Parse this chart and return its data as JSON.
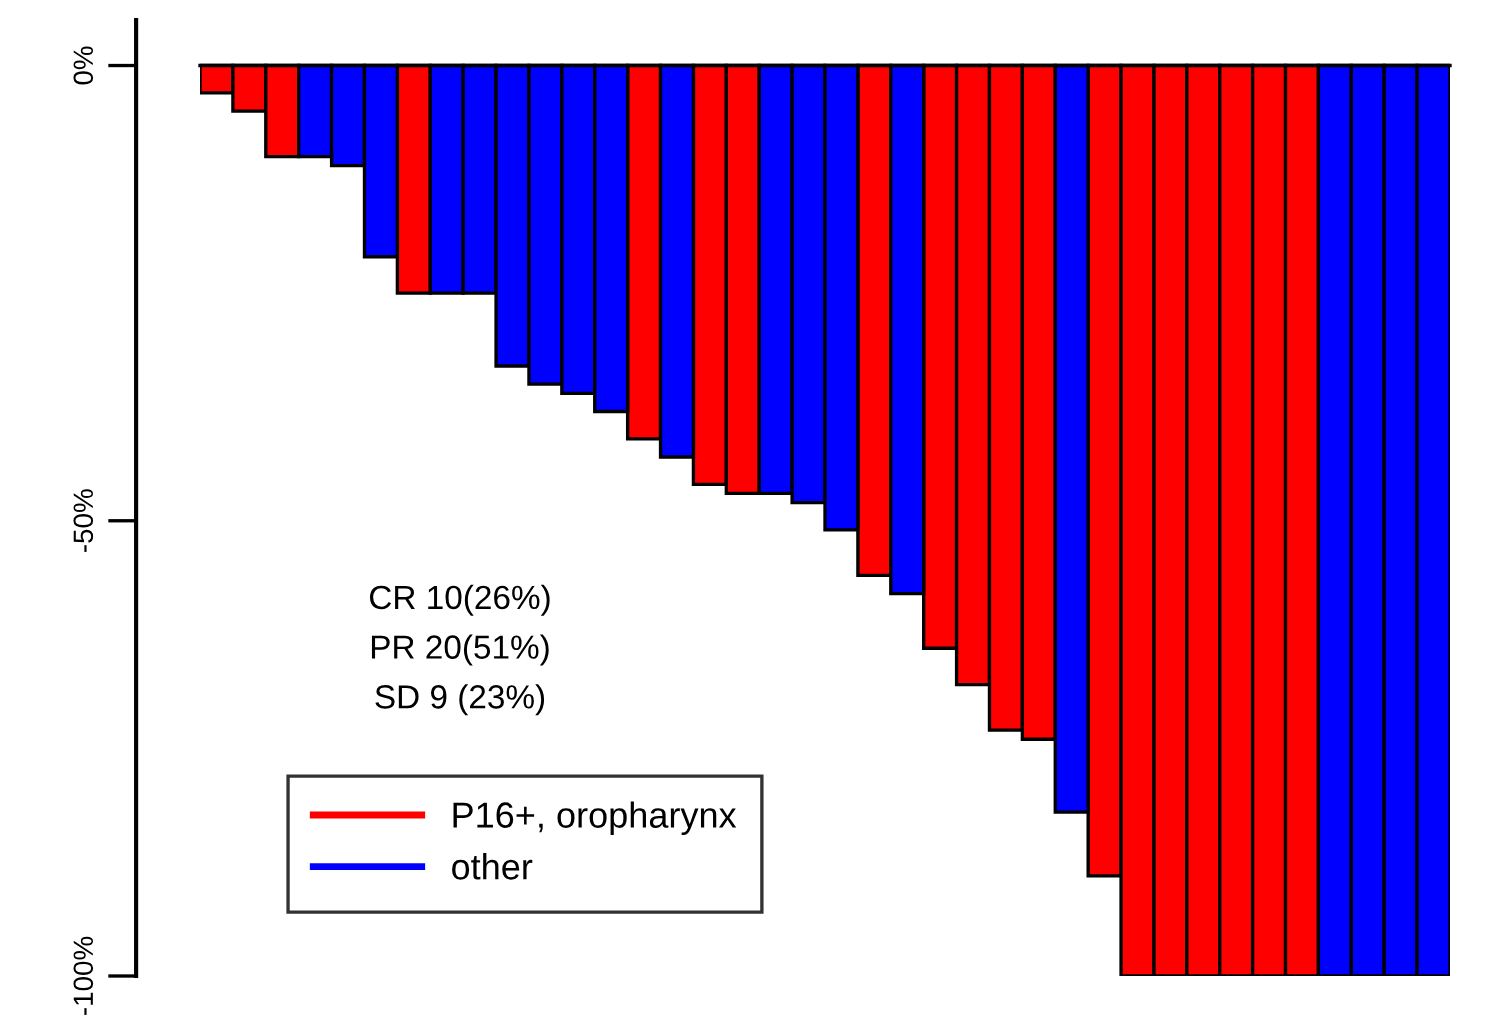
{
  "chart_data": {
    "type": "bar",
    "stacked": true,
    "categories": [
      null,
      null,
      null,
      null,
      null,
      null,
      null,
      null,
      null,
      null,
      null,
      null,
      null,
      null,
      null,
      null,
      null,
      null,
      null,
      null,
      null,
      null,
      null,
      null,
      null,
      null,
      null,
      null,
      null,
      null,
      null,
      null,
      null,
      null,
      null,
      null,
      null,
      null
    ],
    "series": [
      {
        "name": "P16+, oropharynx",
        "color": "#ff0000",
        "values": [
          -3,
          -5,
          -10,
          null,
          null,
          null,
          -25,
          null,
          null,
          null,
          null,
          null,
          null,
          -41,
          null,
          -46,
          -47,
          null,
          null,
          null,
          -56,
          null,
          -64,
          -68,
          -73,
          -74,
          null,
          -89,
          -100,
          -100,
          -100,
          -100,
          -100,
          -100,
          null,
          null,
          null,
          null
        ]
      },
      {
        "name": "other",
        "color": "#0000ff",
        "values": [
          null,
          null,
          null,
          -10,
          -11,
          -21,
          null,
          -25,
          -25,
          -33,
          -35,
          -36,
          -38,
          null,
          -43,
          null,
          null,
          -47,
          -48,
          -51,
          null,
          -58,
          null,
          null,
          null,
          null,
          -82,
          null,
          null,
          null,
          null,
          null,
          null,
          null,
          -100,
          -100,
          -100,
          -100
        ]
      }
    ],
    "ylim": [
      -100,
      5
    ],
    "yticks": [
      {
        "value": 0,
        "label": "0%"
      },
      {
        "value": -50,
        "label": "-50%"
      },
      {
        "value": -100,
        "label": "-100%"
      }
    ],
    "ref_lines": [
      {
        "axis": "y",
        "value": 0,
        "label": null,
        "color": "#000000"
      }
    ],
    "annotations": [
      "CR 10(26%)",
      "PR 20(51%)",
      "SD 9 (23%)"
    ],
    "legend": "bottom left",
    "grid": false
  }
}
